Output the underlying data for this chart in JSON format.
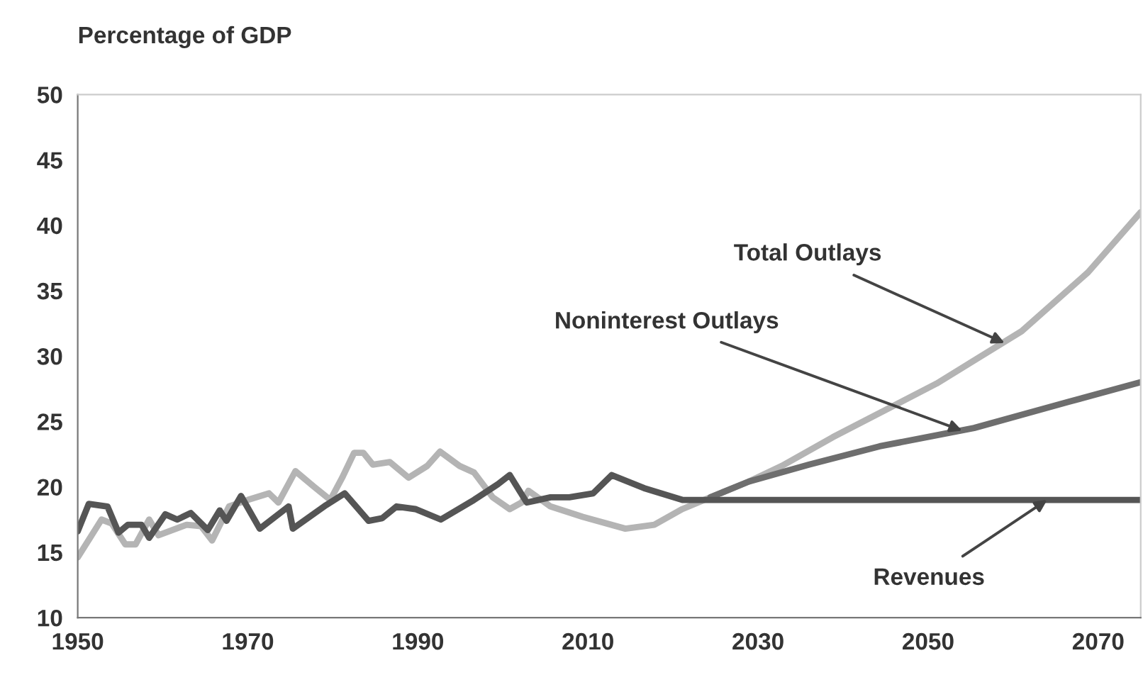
{
  "chart_data": {
    "type": "line",
    "ylabel": "Percentage of GDP",
    "xlim": [
      1950,
      2075
    ],
    "xticks": [
      1950,
      1970,
      1990,
      2010,
      2030,
      2050,
      2070
    ],
    "ylim": [
      10,
      50
    ],
    "yticks": [
      10,
      15,
      20,
      25,
      30,
      35,
      40,
      45,
      50
    ],
    "grid": false,
    "legend": false,
    "marker": "none",
    "line_style": "solid",
    "series": [
      {
        "color": "#b4b4b4",
        "x": [
          1950,
          1952.8,
          1954,
          1955.6,
          1956.8,
          1958.4,
          1959.5,
          1962.8,
          1964.5,
          1965.8,
          1967.8,
          1970,
          1972.5,
          1973.6,
          1975.6,
          1977.8,
          1979.7,
          1981.1,
          1982.5,
          1983.6,
          1984.7,
          1986.7,
          1988.9,
          1991.1,
          1992.6,
          1994.9,
          1996.6,
          1998.8,
          2000.8,
          2002.2,
          2003,
          2005.6,
          2009.4,
          2014.4,
          2017.8,
          2021.1,
          2024.4,
          2028.9,
          2032.8,
          2038.8,
          2051,
          2061,
          2068.8,
          2075
        ],
        "values": [
          14.6,
          17.5,
          17.2,
          15.6,
          15.6,
          17.5,
          16.3,
          17.1,
          17.0,
          15.9,
          18.5,
          19.0,
          19.5,
          18.8,
          21.2,
          20.0,
          19.0,
          20.7,
          22.6,
          22.6,
          21.7,
          21.9,
          20.7,
          21.6,
          22.7,
          21.6,
          21.1,
          19.2,
          18.3,
          18.8,
          19.7,
          18.5,
          17.7,
          16.8,
          17.1,
          18.3,
          19.2,
          20.4,
          21.6,
          23.8,
          27.9,
          31.9,
          36.4,
          41.0
        ]
      },
      {
        "color": "#6e6e6e",
        "x": [
          2024.4,
          2028.9,
          2036,
          2044.3,
          2055.4,
          2066.5,
          2075
        ],
        "values": [
          19.2,
          20.4,
          21.7,
          23.1,
          24.5,
          26.5,
          28.0
        ]
      },
      {
        "color": "#555555",
        "x": [
          1950,
          1951.3,
          1953.5,
          1954.8,
          1955.9,
          1957.5,
          1958.4,
          1960.3,
          1961.7,
          1963.3,
          1965.3,
          1966.7,
          1967.5,
          1969.2,
          1971.4,
          1974.8,
          1975.3,
          1979.2,
          1981.4,
          1984.2,
          1985.8,
          1987.5,
          1989.7,
          1992.7,
          1996.6,
          1999.4,
          2000.8,
          2002.8,
          2005.6,
          2007.8,
          2010.6,
          2012.8,
          2016.6,
          2021.1,
          2075
        ],
        "values": [
          16.6,
          18.7,
          18.5,
          16.5,
          17.1,
          17.1,
          16.1,
          17.9,
          17.5,
          18.0,
          16.7,
          18.2,
          17.4,
          19.3,
          16.8,
          18.5,
          16.8,
          18.6,
          19.5,
          17.4,
          17.6,
          18.5,
          18.3,
          17.5,
          19.0,
          20.2,
          20.9,
          18.8,
          19.2,
          19.2,
          19.5,
          20.9,
          19.9,
          19.0,
          19.0
        ]
      }
    ],
    "annotations": [
      {
        "text": "Total Outlays",
        "x": 2059,
        "y": 31.0
      },
      {
        "text": "Noninterest Outlays",
        "x": 2054,
        "y": 24.3
      },
      {
        "text": "Revenues",
        "x": 2064,
        "y": 19.0
      }
    ]
  }
}
